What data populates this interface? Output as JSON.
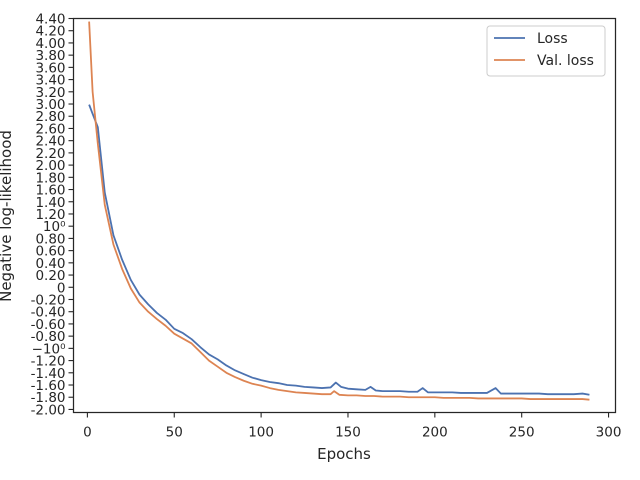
{
  "chart_data": {
    "type": "line",
    "title": "",
    "xlabel": "Epochs",
    "ylabel": "Negative log-likelihood",
    "xlim": [
      -8,
      304
    ],
    "ylim": [
      -2.05,
      4.4
    ],
    "x_ticks": [
      0,
      50,
      100,
      150,
      200,
      250,
      300
    ],
    "y_ticks": [
      {
        "v": 4.4,
        "label": "4.40"
      },
      {
        "v": 4.2,
        "label": "4.20"
      },
      {
        "v": 4.0,
        "label": "4.00"
      },
      {
        "v": 3.8,
        "label": "3.80"
      },
      {
        "v": 3.6,
        "label": "3.60"
      },
      {
        "v": 3.4,
        "label": "3.40"
      },
      {
        "v": 3.2,
        "label": "3.20"
      },
      {
        "v": 3.0,
        "label": "3.00"
      },
      {
        "v": 2.8,
        "label": "2.80"
      },
      {
        "v": 2.6,
        "label": "2.60"
      },
      {
        "v": 2.4,
        "label": "2.40"
      },
      {
        "v": 2.2,
        "label": "2.20"
      },
      {
        "v": 2.0,
        "label": "2.00"
      },
      {
        "v": 1.8,
        "label": "1.80"
      },
      {
        "v": 1.6,
        "label": "1.60"
      },
      {
        "v": 1.4,
        "label": "1.40"
      },
      {
        "v": 1.2,
        "label": "1.20"
      },
      {
        "v": 1.0,
        "label": "10⁰"
      },
      {
        "v": 0.8,
        "label": "0.80"
      },
      {
        "v": 0.6,
        "label": "0.60"
      },
      {
        "v": 0.4,
        "label": "0.40"
      },
      {
        "v": 0.2,
        "label": "0.20"
      },
      {
        "v": 0.0,
        "label": "0"
      },
      {
        "v": -0.2,
        "label": "-0.20"
      },
      {
        "v": -0.4,
        "label": "-0.40"
      },
      {
        "v": -0.6,
        "label": "-0.60"
      },
      {
        "v": -0.8,
        "label": "-0.80"
      },
      {
        "v": -1.0,
        "label": "−10⁰"
      },
      {
        "v": -1.2,
        "label": "-1.20"
      },
      {
        "v": -1.4,
        "label": "-1.40"
      },
      {
        "v": -1.6,
        "label": "-1.60"
      },
      {
        "v": -1.8,
        "label": "-1.80"
      },
      {
        "v": -2.0,
        "label": "-2.00"
      }
    ],
    "grid": false,
    "legend": "top-right",
    "series": [
      {
        "name": "Loss",
        "color": "#4c72b0",
        "points": [
          [
            1,
            2.99
          ],
          [
            3,
            2.84
          ],
          [
            6,
            2.62
          ],
          [
            10,
            1.55
          ],
          [
            15,
            0.85
          ],
          [
            20,
            0.45
          ],
          [
            25,
            0.12
          ],
          [
            30,
            -0.12
          ],
          [
            35,
            -0.28
          ],
          [
            40,
            -0.42
          ],
          [
            45,
            -0.53
          ],
          [
            50,
            -0.68
          ],
          [
            55,
            -0.75
          ],
          [
            60,
            -0.85
          ],
          [
            65,
            -0.98
          ],
          [
            70,
            -1.1
          ],
          [
            75,
            -1.18
          ],
          [
            80,
            -1.28
          ],
          [
            85,
            -1.36
          ],
          [
            90,
            -1.42
          ],
          [
            95,
            -1.48
          ],
          [
            100,
            -1.52
          ],
          [
            105,
            -1.55
          ],
          [
            110,
            -1.57
          ],
          [
            115,
            -1.6
          ],
          [
            120,
            -1.61
          ],
          [
            125,
            -1.63
          ],
          [
            130,
            -1.64
          ],
          [
            135,
            -1.65
          ],
          [
            140,
            -1.64
          ],
          [
            143,
            -1.56
          ],
          [
            146,
            -1.63
          ],
          [
            150,
            -1.66
          ],
          [
            155,
            -1.67
          ],
          [
            160,
            -1.68
          ],
          [
            163,
            -1.63
          ],
          [
            166,
            -1.69
          ],
          [
            170,
            -1.7
          ],
          [
            175,
            -1.7
          ],
          [
            180,
            -1.7
          ],
          [
            185,
            -1.71
          ],
          [
            190,
            -1.71
          ],
          [
            193,
            -1.65
          ],
          [
            196,
            -1.72
          ],
          [
            200,
            -1.72
          ],
          [
            205,
            -1.72
          ],
          [
            210,
            -1.72
          ],
          [
            215,
            -1.73
          ],
          [
            220,
            -1.73
          ],
          [
            225,
            -1.73
          ],
          [
            230,
            -1.73
          ],
          [
            235,
            -1.65
          ],
          [
            238,
            -1.74
          ],
          [
            240,
            -1.74
          ],
          [
            245,
            -1.74
          ],
          [
            250,
            -1.74
          ],
          [
            255,
            -1.74
          ],
          [
            260,
            -1.74
          ],
          [
            265,
            -1.75
          ],
          [
            270,
            -1.75
          ],
          [
            275,
            -1.75
          ],
          [
            280,
            -1.75
          ],
          [
            285,
            -1.74
          ],
          [
            289,
            -1.76
          ]
        ]
      },
      {
        "name": "Val. loss",
        "color": "#dd8452",
        "points": [
          [
            1,
            4.35
          ],
          [
            3,
            3.2
          ],
          [
            6,
            2.35
          ],
          [
            10,
            1.35
          ],
          [
            15,
            0.7
          ],
          [
            20,
            0.3
          ],
          [
            25,
            -0.02
          ],
          [
            30,
            -0.25
          ],
          [
            35,
            -0.4
          ],
          [
            40,
            -0.52
          ],
          [
            45,
            -0.63
          ],
          [
            50,
            -0.76
          ],
          [
            55,
            -0.84
          ],
          [
            60,
            -0.92
          ],
          [
            65,
            -1.06
          ],
          [
            70,
            -1.2
          ],
          [
            75,
            -1.3
          ],
          [
            80,
            -1.4
          ],
          [
            85,
            -1.47
          ],
          [
            90,
            -1.53
          ],
          [
            95,
            -1.58
          ],
          [
            100,
            -1.61
          ],
          [
            105,
            -1.65
          ],
          [
            110,
            -1.68
          ],
          [
            115,
            -1.7
          ],
          [
            120,
            -1.72
          ],
          [
            125,
            -1.73
          ],
          [
            130,
            -1.74
          ],
          [
            135,
            -1.75
          ],
          [
            140,
            -1.75
          ],
          [
            142,
            -1.7
          ],
          [
            145,
            -1.76
          ],
          [
            150,
            -1.77
          ],
          [
            155,
            -1.77
          ],
          [
            160,
            -1.78
          ],
          [
            165,
            -1.78
          ],
          [
            170,
            -1.79
          ],
          [
            175,
            -1.79
          ],
          [
            180,
            -1.79
          ],
          [
            185,
            -1.8
          ],
          [
            190,
            -1.8
          ],
          [
            195,
            -1.8
          ],
          [
            200,
            -1.8
          ],
          [
            205,
            -1.81
          ],
          [
            210,
            -1.81
          ],
          [
            215,
            -1.81
          ],
          [
            220,
            -1.81
          ],
          [
            225,
            -1.82
          ],
          [
            230,
            -1.82
          ],
          [
            235,
            -1.82
          ],
          [
            240,
            -1.82
          ],
          [
            245,
            -1.82
          ],
          [
            250,
            -1.82
          ],
          [
            255,
            -1.83
          ],
          [
            260,
            -1.83
          ],
          [
            265,
            -1.83
          ],
          [
            270,
            -1.83
          ],
          [
            275,
            -1.83
          ],
          [
            280,
            -1.83
          ],
          [
            285,
            -1.83
          ],
          [
            289,
            -1.84
          ]
        ]
      }
    ]
  }
}
